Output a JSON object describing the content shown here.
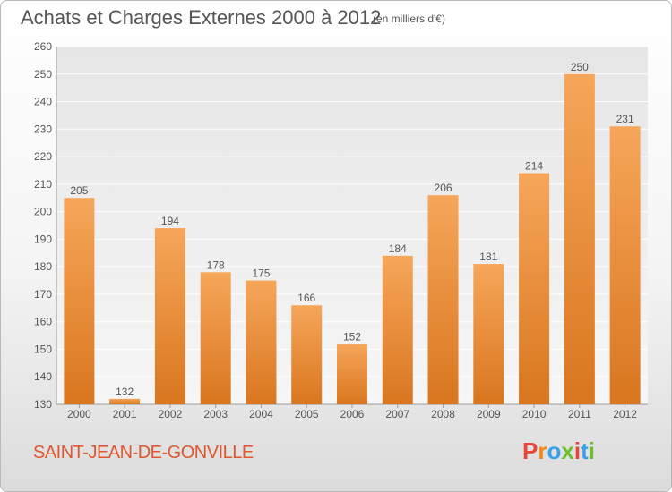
{
  "header": {
    "title": "Achats et Charges Externes 2000 à 2012",
    "subtitle": "(en milliers d'€)"
  },
  "footer": {
    "town": "SAINT-JEAN-DE-GONVILLE",
    "logo": "Proxiti",
    "logo_colors": [
      "#e8453c",
      "#f08a1c",
      "#3aa0e8",
      "#6cbf2a",
      "#e8453c",
      "#3aa0e8",
      "#6cbf2a"
    ]
  },
  "colors": {
    "bar_top": "#f6a65a",
    "bar_bottom": "#d9761f",
    "town": "#e0572f",
    "text": "#555555"
  },
  "chart_data": {
    "type": "bar",
    "title": "Achats et Charges Externes 2000 à 2012",
    "subtitle": "(en milliers d'€)",
    "categories": [
      "2000",
      "2001",
      "2002",
      "2003",
      "2004",
      "2005",
      "2006",
      "2007",
      "2008",
      "2009",
      "2010",
      "2011",
      "2012"
    ],
    "values": [
      205,
      132,
      194,
      178,
      175,
      166,
      152,
      184,
      206,
      181,
      214,
      250,
      231
    ],
    "ylim": [
      130,
      260
    ],
    "yticks": [
      130,
      140,
      150,
      160,
      170,
      180,
      190,
      200,
      210,
      220,
      230,
      240,
      250,
      260
    ],
    "grid": true,
    "legend": "none"
  }
}
